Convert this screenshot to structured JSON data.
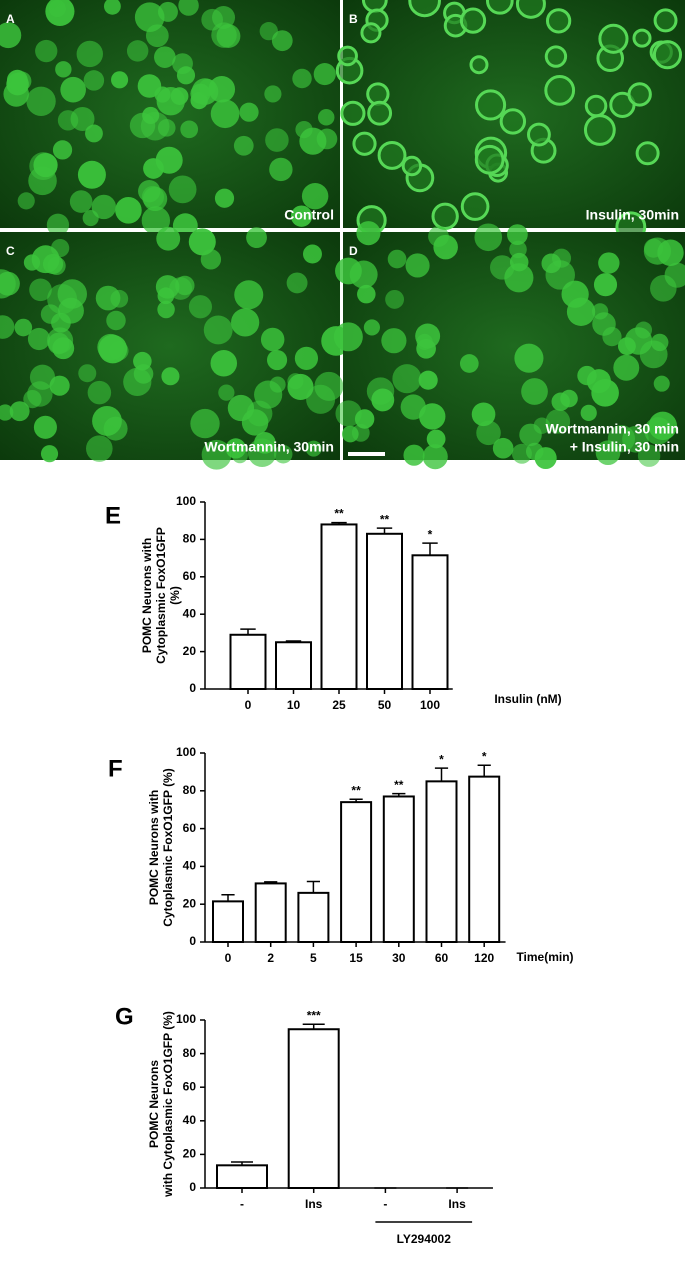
{
  "panels": [
    {
      "letter": "A",
      "caption": [
        "Control"
      ]
    },
    {
      "letter": "B",
      "caption": [
        "Insulin, 30min"
      ]
    },
    {
      "letter": "C",
      "caption": [
        "Wortmannin, 30min"
      ]
    },
    {
      "letter": "D",
      "caption": [
        "Wortmannin, 30 min",
        "+ Insulin, 30 min"
      ]
    }
  ],
  "chart_data": [
    {
      "type": "bar",
      "panel": "E",
      "ylabel": [
        "POMC Neurons with",
        "Cytoplasmic FoxO1GFP",
        "(%)"
      ],
      "xlabel": "Insulin (nM)",
      "categories": [
        "0",
        "10",
        "25",
        "50",
        "100"
      ],
      "values": [
        29,
        25,
        88,
        83,
        71.5
      ],
      "errors": [
        3,
        0.7,
        1,
        3,
        6.5
      ],
      "annotations": [
        null,
        null,
        "**",
        "**",
        "*"
      ],
      "color": "#ffffff",
      "ylim": [
        0,
        100
      ],
      "yticks": [
        0,
        20,
        40,
        60,
        80,
        100
      ]
    },
    {
      "type": "bar",
      "panel": "F",
      "ylabel": [
        "POMC Neurons with",
        "Cytoplasmic FoxO1GFP (%)"
      ],
      "xlabel": "Time(min)",
      "categories": [
        "0",
        "2",
        "5",
        "15",
        "30",
        "60",
        "120"
      ],
      "values": [
        21.5,
        31,
        26,
        74,
        77,
        85,
        87.5
      ],
      "errors": [
        3.5,
        0.8,
        6,
        1.5,
        1.5,
        7,
        6
      ],
      "annotations": [
        null,
        null,
        null,
        "**",
        "**",
        "*",
        "*"
      ],
      "color": "#ffffff",
      "ylim": [
        0,
        100
      ],
      "yticks": [
        0,
        20,
        40,
        60,
        80,
        100
      ]
    },
    {
      "type": "bar",
      "panel": "G",
      "ylabel": [
        "POMC Neurons",
        "with Cytoplasmic FoxO1GFP (%)"
      ],
      "group_label": "LY294002",
      "categories": [
        "-",
        "Ins",
        "-",
        "Ins"
      ],
      "values": [
        13.5,
        94.5,
        0,
        0
      ],
      "errors": [
        2,
        3,
        0,
        0
      ],
      "annotations": [
        null,
        "***",
        null,
        null
      ],
      "color": "#ffffff",
      "ylim": [
        0,
        100
      ],
      "yticks": [
        0,
        20,
        40,
        60,
        80,
        100
      ]
    }
  ]
}
